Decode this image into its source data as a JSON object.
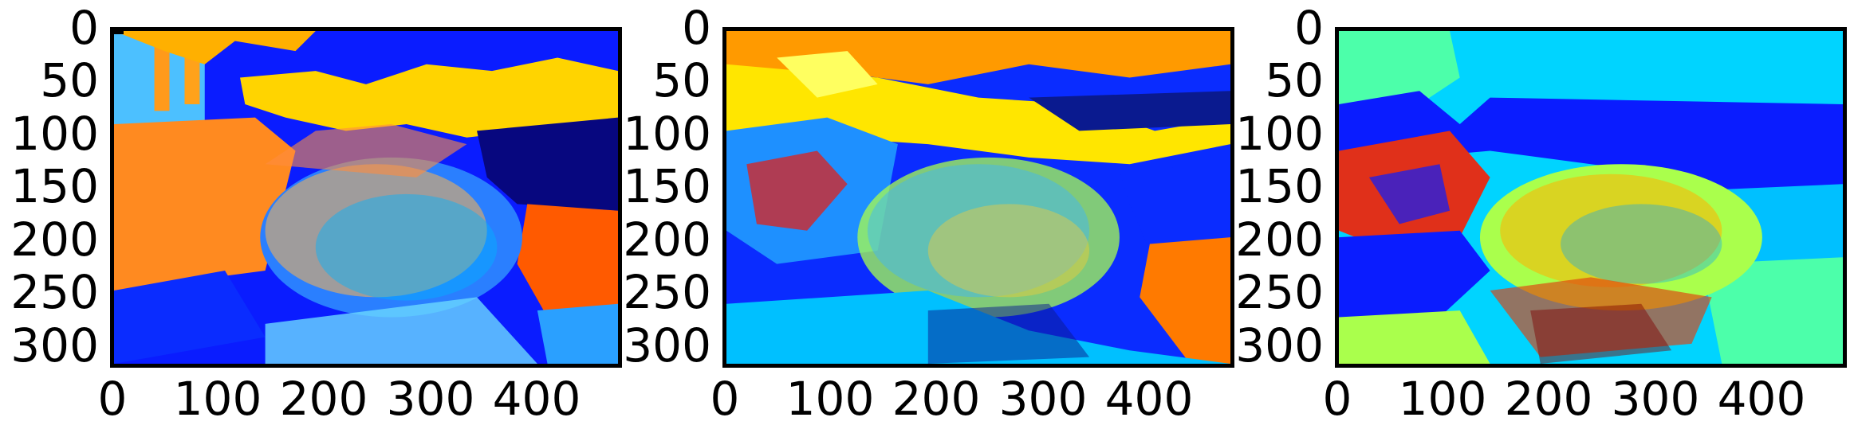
{
  "figure": {
    "panels": [
      {
        "id": "panel-1",
        "x_ticks": [
          "0",
          "100",
          "200",
          "300",
          "400"
        ],
        "y_ticks": [
          "0",
          "50",
          "100",
          "150",
          "200",
          "250",
          "300"
        ]
      },
      {
        "id": "panel-2",
        "x_ticks": [
          "0",
          "100",
          "200",
          "300",
          "400"
        ],
        "y_ticks": [
          "0",
          "50",
          "100",
          "150",
          "200",
          "250",
          "300"
        ]
      },
      {
        "id": "panel-3",
        "x_ticks": [
          "0",
          "100",
          "200",
          "300",
          "400"
        ],
        "y_ticks": [
          "0",
          "50",
          "100",
          "150",
          "200",
          "250",
          "300"
        ]
      }
    ],
    "colormap": [
      "#00007f",
      "#0000ff",
      "#0080ff",
      "#00d4ff",
      "#4cffaa",
      "#aaff4c",
      "#ffe600",
      "#ff9000",
      "#ff3d00",
      "#7f0000"
    ]
  }
}
